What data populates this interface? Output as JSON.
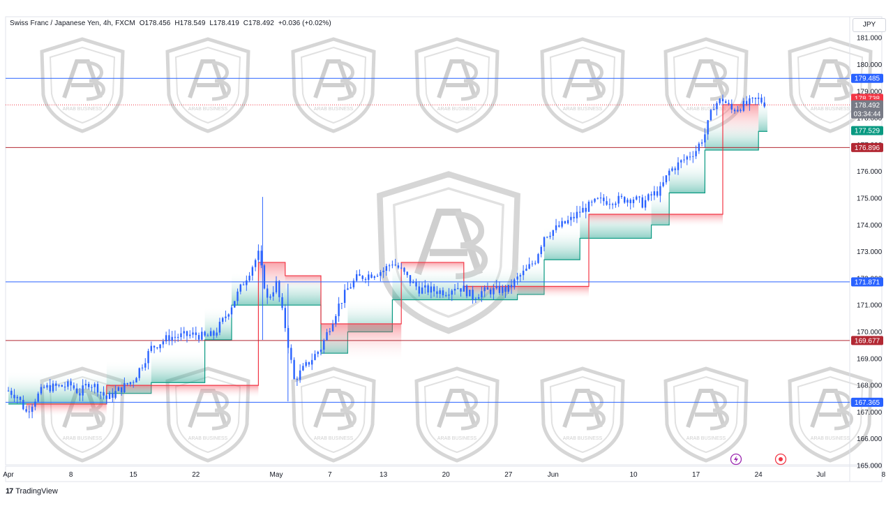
{
  "header": {
    "symbol_title": "Swiss Franc / Japanese Yen, 4h, FXCM",
    "open": "O178.456",
    "high": "H178.549",
    "low": "L178.419",
    "close": "C178.492",
    "change": "+0.036 (+0.02%)",
    "price_unit": "JPY"
  },
  "footer": {
    "brand": "TradingView"
  },
  "watermark": {
    "text": "ARAB BUSINESS"
  },
  "icons": {
    "flash": "lightning-icon",
    "record": "target-icon"
  },
  "colors": {
    "up_band": "#089981",
    "down_band": "#f23645",
    "candle": "#2962ff",
    "blue_line": "#2962ff",
    "red_line": "#b22833",
    "current_price": "#787b86"
  },
  "chart_data": {
    "type": "candlestick",
    "title": "Swiss Franc / Japanese Yen, 4h, FXCM",
    "ylim": [
      165,
      181
    ],
    "y_ticks": [
      "165.000",
      "166.000",
      "167.000",
      "168.000",
      "169.000",
      "170.000",
      "171.000",
      "172.000",
      "173.000",
      "174.000",
      "175.000",
      "176.000",
      "177.000",
      "178.000",
      "179.000",
      "180.000",
      "181.000"
    ],
    "x_ticks": [
      "Apr",
      "8",
      "15",
      "22",
      "May",
      "7",
      "13",
      "20",
      "27",
      "Jun",
      "10",
      "17",
      "24",
      "Jul",
      "8"
    ],
    "price_path": [
      [
        "Apr 1",
        167.8
      ],
      [
        "Apr 2",
        167.6
      ],
      [
        "Apr 3",
        167.0
      ],
      [
        "Apr 4",
        167.5
      ],
      [
        "Apr 5",
        167.9
      ],
      [
        "Apr 8",
        168.0
      ],
      [
        "Apr 9",
        167.7
      ],
      [
        "Apr 10",
        168.1
      ],
      [
        "Apr 11",
        167.9
      ],
      [
        "Apr 12",
        167.5
      ],
      [
        "Apr 15",
        168.2
      ],
      [
        "Apr 16",
        168.8
      ],
      [
        "Apr 17",
        169.4
      ],
      [
        "Apr 18",
        169.6
      ],
      [
        "Apr 19",
        169.8
      ],
      [
        "Apr 22",
        169.9
      ],
      [
        "Apr 23",
        169.8
      ],
      [
        "Apr 24",
        169.9
      ],
      [
        "Apr 25",
        170.4
      ],
      [
        "Apr 26",
        171.0
      ],
      [
        "Apr 29",
        172.9
      ],
      [
        "Apr 30",
        171.2
      ],
      [
        "May 1",
        171.8
      ],
      [
        "May 2",
        170.2
      ],
      [
        "May 3",
        168.2
      ],
      [
        "May 6",
        169.4
      ],
      [
        "May 7",
        170.2
      ],
      [
        "May 8",
        171.0
      ],
      [
        "May 9",
        171.6
      ],
      [
        "May 10",
        172.0
      ],
      [
        "May 13",
        172.3
      ],
      [
        "May 14",
        172.6
      ],
      [
        "May 15",
        172.3
      ],
      [
        "May 16",
        171.9
      ],
      [
        "May 17",
        171.6
      ],
      [
        "May 20",
        171.5
      ],
      [
        "May 21",
        171.7
      ],
      [
        "May 22",
        171.6
      ],
      [
        "May 23",
        171.3
      ],
      [
        "May 24",
        171.5
      ],
      [
        "May 27",
        171.6
      ],
      [
        "May 28",
        172.0
      ],
      [
        "May 29",
        172.3
      ],
      [
        "May 30",
        172.7
      ],
      [
        "May 31",
        173.6
      ],
      [
        "Jun 3",
        174.2
      ],
      [
        "Jun 4",
        174.5
      ],
      [
        "Jun 5",
        174.7
      ],
      [
        "Jun 6",
        174.9
      ],
      [
        "Jun 7",
        174.9
      ],
      [
        "Jun 10",
        175.0
      ],
      [
        "Jun 11",
        174.8
      ],
      [
        "Jun 12",
        175.1
      ],
      [
        "Jun 13",
        175.3
      ],
      [
        "Jun 14",
        176.0
      ],
      [
        "Jun 17",
        176.8
      ],
      [
        "Jun 18",
        177.4
      ],
      [
        "Jun 19",
        178.5
      ],
      [
        "Jun 20",
        178.7
      ],
      [
        "Jun 21",
        178.3
      ],
      [
        "Jun 24",
        178.7
      ],
      [
        "Jun 25",
        178.5
      ]
    ],
    "support_band": [
      [
        "Apr 1",
        167.3
      ],
      [
        "Apr 12",
        167.7
      ],
      [
        "Apr 17",
        168.1
      ],
      [
        "Apr 23",
        169.7
      ],
      [
        "Apr 26",
        171.0
      ],
      [
        "May 6",
        169.2
      ],
      [
        "May 9",
        170.0
      ],
      [
        "May 14",
        171.2
      ],
      [
        "May 28",
        171.4
      ],
      [
        "May 31",
        172.7
      ],
      [
        "Jun 4",
        173.5
      ],
      [
        "Jun 12",
        174.0
      ],
      [
        "Jun 14",
        175.2
      ],
      [
        "Jun 18",
        176.8
      ],
      [
        "Jun 24",
        177.5
      ]
    ],
    "resistance_band": [
      [
        "Apr 3",
        167.3
      ],
      [
        "Apr 12",
        168.0
      ],
      [
        "Apr 29",
        172.6
      ],
      [
        "May 2",
        172.1
      ],
      [
        "May 6",
        170.3
      ],
      [
        "May 15",
        172.6
      ],
      [
        "May 22",
        171.7
      ],
      [
        "Jun 5",
        174.4
      ],
      [
        "Jun 20",
        178.5
      ]
    ],
    "horizontal_levels": [
      {
        "value": 179.485,
        "label": "179.485",
        "color": "#2962ff"
      },
      {
        "value": 178.738,
        "label": "178.738",
        "color": "#f23645"
      },
      {
        "value": 178.533,
        "label": "178.533",
        "color": "#f23645"
      },
      {
        "value": 178.492,
        "label": "178.492",
        "color": "#787b86",
        "sublabel": "03:34:44"
      },
      {
        "value": 177.529,
        "label": "177.529",
        "color": "#089981"
      },
      {
        "value": 176.896,
        "label": "176.896",
        "color": "#b22833"
      },
      {
        "value": 171.871,
        "label": "171.871",
        "color": "#2962ff"
      },
      {
        "value": 169.677,
        "label": "169.677",
        "color": "#b22833"
      },
      {
        "value": 167.365,
        "label": "167.365",
        "color": "#2962ff"
      }
    ]
  }
}
